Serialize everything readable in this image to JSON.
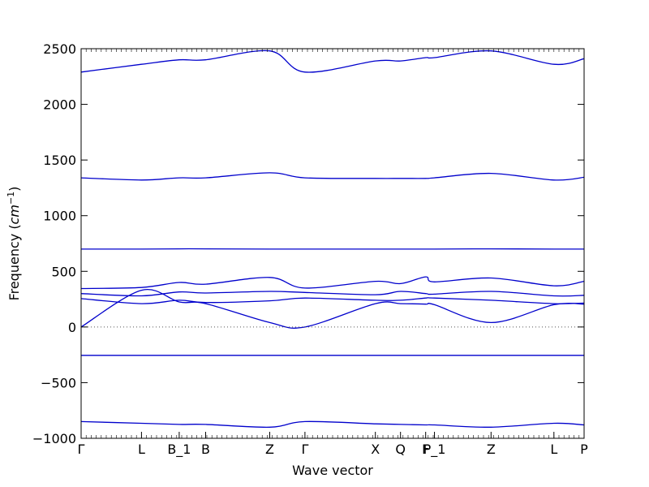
{
  "chart_data": {
    "type": "line",
    "title": "",
    "xlabel": "Wave vector",
    "ylabel_text": "Frequency (",
    "ylabel_unit": "cm",
    "ylabel_unit_power": "−1",
    "ylabel_close": ")",
    "ylim": [
      -1000,
      2500
    ],
    "yticks": [
      {
        "value": -1000,
        "label": "−1000"
      },
      {
        "value": -500,
        "label": "−500"
      },
      {
        "value": 0,
        "label": "0"
      },
      {
        "value": 500,
        "label": "500"
      },
      {
        "value": 1000,
        "label": "1000"
      },
      {
        "value": 1500,
        "label": "1500"
      },
      {
        "value": 2000,
        "label": "2000"
      },
      {
        "value": 2500,
        "label": "2500"
      }
    ],
    "xlim": [
      0,
      20
    ],
    "xticks": [
      {
        "value": 0,
        "label": "Γ"
      },
      {
        "value": 2.4,
        "label": "L"
      },
      {
        "value": 3.9,
        "label": "B_1"
      },
      {
        "value": 4.95,
        "label": "B"
      },
      {
        "value": 7.5,
        "label": "Z"
      },
      {
        "value": 8.9,
        "label": "Γ"
      },
      {
        "value": 11.7,
        "label": "X"
      },
      {
        "value": 12.7,
        "label": "Q"
      },
      {
        "value": 13.7,
        "label": "F"
      },
      {
        "value": 14.05,
        "label": "P_1"
      },
      {
        "value": 16.3,
        "label": "Z"
      },
      {
        "value": 18.8,
        "label": "L"
      },
      {
        "value": 20,
        "label": "P"
      }
    ],
    "zero_reference_line": {
      "value": 0,
      "style": "dotted"
    },
    "line_color": "#0000cc",
    "series": [
      {
        "x": [
          0,
          2.4,
          3.9,
          4.95,
          7.5,
          8.9,
          11.7,
          12.7,
          13.7,
          14.05,
          16.3,
          18.8,
          20
        ],
        "y": [
          2290,
          2360,
          2400,
          2400,
          2480,
          2290,
          2390,
          2390,
          2420,
          2420,
          2480,
          2360,
          2410
        ]
      },
      {
        "x": [
          0,
          2.4,
          3.9,
          4.95,
          7.5,
          8.9,
          11.7,
          12.7,
          13.7,
          14.05,
          16.3,
          18.8,
          20
        ],
        "y": [
          1340,
          1320,
          1340,
          1340,
          1385,
          1340,
          1335,
          1335,
          1335,
          1340,
          1380,
          1320,
          1345
        ]
      },
      {
        "x": [
          0,
          2.4,
          3.9,
          4.95,
          7.5,
          8.9,
          11.7,
          12.7,
          13.7,
          14.05,
          16.3,
          18.8,
          20
        ],
        "y": [
          700,
          700,
          702,
          702,
          700,
          700,
          700,
          700,
          700,
          700,
          702,
          700,
          700
        ]
      },
      {
        "x": [
          0,
          2.4,
          3.9,
          4.95,
          7.5,
          8.9,
          11.7,
          12.7,
          13.7,
          14.05,
          16.3,
          18.8,
          20
        ],
        "y": [
          345,
          355,
          400,
          385,
          445,
          350,
          410,
          390,
          450,
          405,
          440,
          370,
          410
        ]
      },
      {
        "x": [
          0,
          2.4,
          3.9,
          4.95,
          7.5,
          8.9,
          11.7,
          12.7,
          13.7,
          14.05,
          16.3,
          18.8,
          20
        ],
        "y": [
          300,
          280,
          315,
          305,
          320,
          310,
          290,
          320,
          300,
          295,
          320,
          280,
          285
        ]
      },
      {
        "x": [
          0,
          2.4,
          3.9,
          4.95,
          7.5,
          8.9,
          11.7,
          12.7,
          13.7,
          14.05,
          16.3,
          18.8,
          20
        ],
        "y": [
          255,
          210,
          240,
          220,
          235,
          260,
          240,
          240,
          260,
          260,
          240,
          210,
          215
        ]
      },
      {
        "x": [
          0,
          2.4,
          3.9,
          4.95,
          7.5,
          8.9,
          11.7,
          12.7,
          13.7,
          14.05,
          16.3,
          18.8,
          20
        ],
        "y": [
          0,
          330,
          225,
          210,
          40,
          0,
          210,
          210,
          205,
          200,
          40,
          200,
          205
        ]
      },
      {
        "x": [
          0,
          2.4,
          3.9,
          4.95,
          7.5,
          8.9,
          11.7,
          12.7,
          13.7,
          14.05,
          16.3,
          18.8,
          20
        ],
        "y": [
          -255,
          -255,
          -255,
          -255,
          -255,
          -255,
          -255,
          -255,
          -255,
          -255,
          -255,
          -255,
          -255
        ]
      },
      {
        "x": [
          0,
          2.4,
          3.9,
          4.95,
          7.5,
          8.9,
          11.7,
          12.7,
          13.7,
          14.05,
          16.3,
          18.8,
          20
        ],
        "y": [
          -850,
          -865,
          -875,
          -875,
          -900,
          -850,
          -870,
          -875,
          -880,
          -880,
          -900,
          -865,
          -880
        ]
      }
    ]
  }
}
